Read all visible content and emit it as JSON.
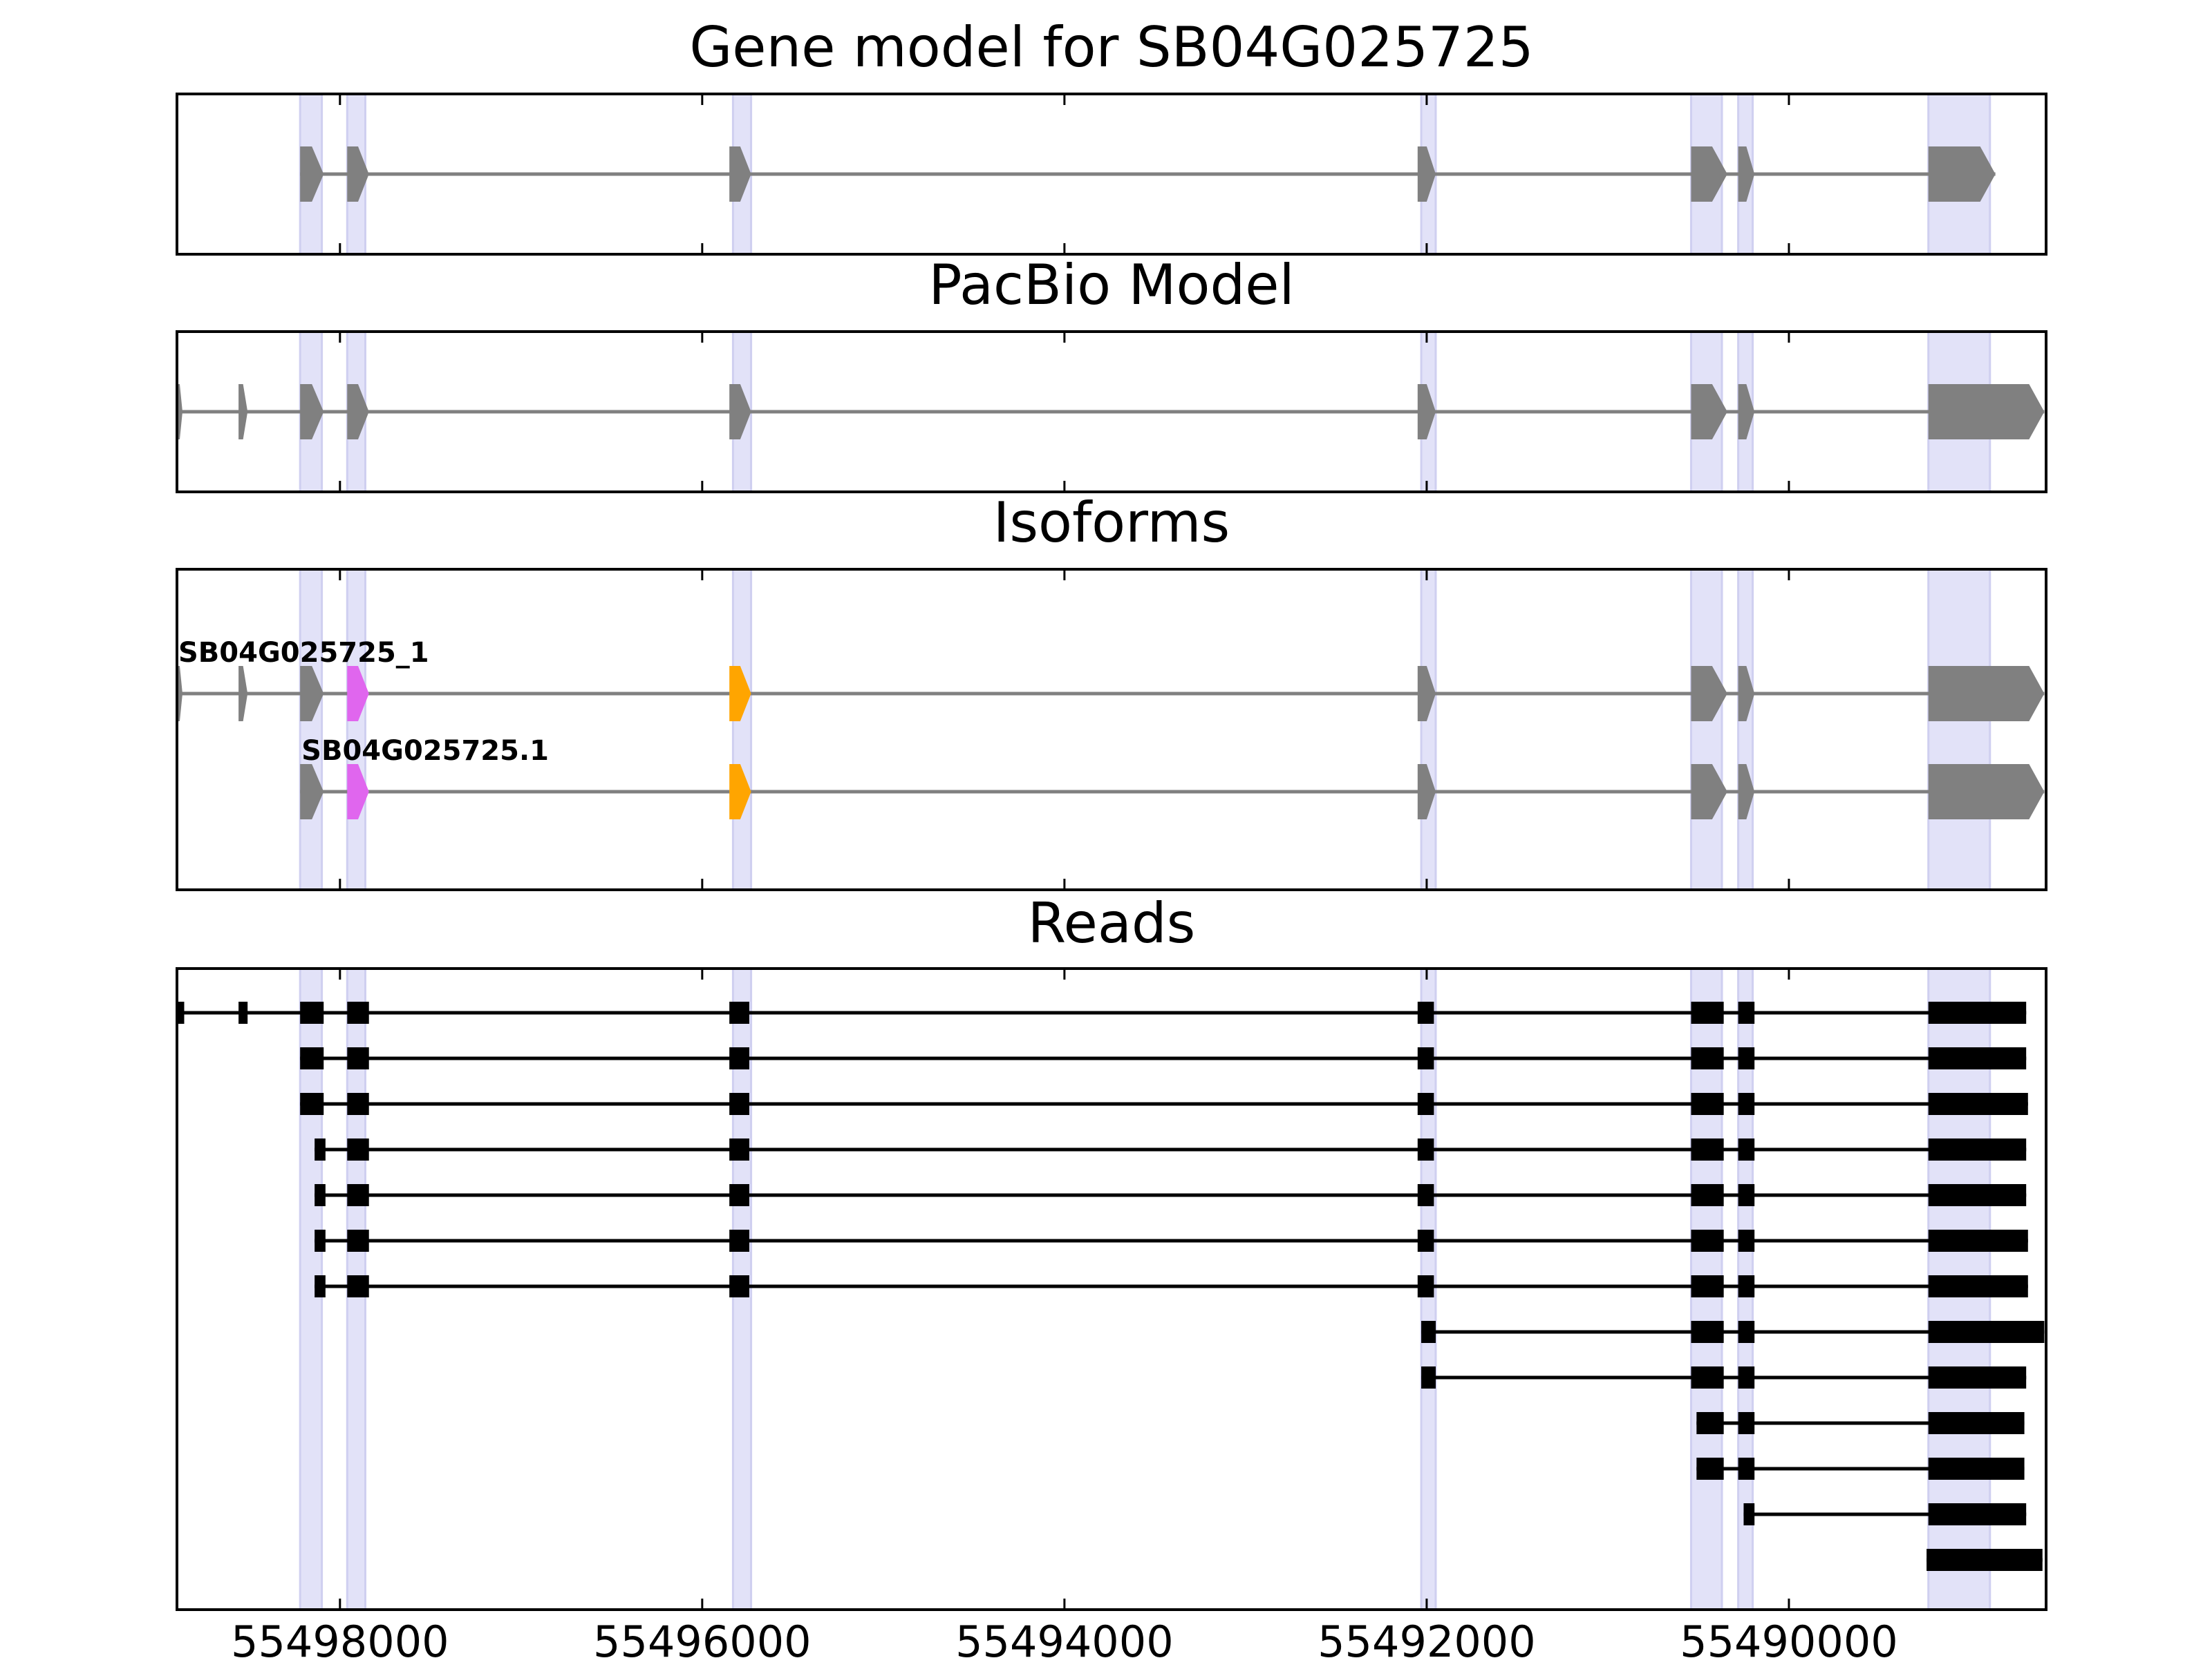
{
  "figure": {
    "panels": [
      {
        "key": "gene_model",
        "title": "Gene model for SB04G025725",
        "tracks": [
          {
            "label": "",
            "style": "gene",
            "exons": [
              [
                55498220,
                55498090
              ],
              [
                55497960,
                55497840
              ],
              [
                55495850,
                55495730
              ],
              [
                55492050,
                55491950
              ],
              [
                55490540,
                55490340
              ],
              [
                55490280,
                55490190
              ],
              [
                55489230,
                55488860
              ]
            ]
          }
        ]
      },
      {
        "key": "pacbio_model",
        "title": "PacBio Model",
        "tracks": [
          {
            "label": "",
            "style": "gene",
            "exons": [
              [
                55498900,
                55498870
              ],
              [
                55498560,
                55498510
              ],
              [
                55498220,
                55498090
              ],
              [
                55497960,
                55497840
              ],
              [
                55495850,
                55495730
              ],
              [
                55492050,
                55491950
              ],
              [
                55490540,
                55490340
              ],
              [
                55490280,
                55490190
              ],
              [
                55489230,
                55488590
              ]
            ]
          }
        ]
      },
      {
        "key": "isoforms",
        "title": "Isoforms",
        "tracks": [
          {
            "label": "SB04G025725_1",
            "style": "gene",
            "exons": [
              [
                55498900,
                55498870
              ],
              [
                55498560,
                55498510
              ],
              [
                55498220,
                55498090
              ],
              [
                55497960,
                55497840
              ],
              [
                55495850,
                55495730
              ],
              [
                55492050,
                55491950
              ],
              [
                55490540,
                55490340
              ],
              [
                55490280,
                55490190
              ],
              [
                55489230,
                55488590
              ]
            ],
            "exon_colors": [
              "#808080",
              "#808080",
              "#808080",
              "#e066ee",
              "#ffa500",
              "#808080",
              "#808080",
              "#808080",
              "#808080"
            ]
          },
          {
            "label": "SB04G025725.1",
            "style": "gene",
            "exons": [
              [
                55498220,
                55498090
              ],
              [
                55497960,
                55497840
              ],
              [
                55495850,
                55495730
              ],
              [
                55492050,
                55491950
              ],
              [
                55490540,
                55490340
              ],
              [
                55490280,
                55490190
              ],
              [
                55489230,
                55488590
              ]
            ],
            "exon_colors": [
              "#808080",
              "#e066ee",
              "#ffa500",
              "#808080",
              "#808080",
              "#808080",
              "#808080"
            ]
          }
        ]
      },
      {
        "key": "reads",
        "title": "Reads",
        "tracks": [
          {
            "label": "",
            "style": "read",
            "exons": [
              [
                55498900,
                55498860
              ],
              [
                55498560,
                55498510
              ],
              [
                55498220,
                55498090
              ],
              [
                55497960,
                55497840
              ],
              [
                55495850,
                55495740
              ],
              [
                55492050,
                55491960
              ],
              [
                55490540,
                55490360
              ],
              [
                55490280,
                55490190
              ],
              [
                55489230,
                55488690
              ]
            ]
          },
          {
            "label": "",
            "style": "read",
            "exons": [
              [
                55498220,
                55498090
              ],
              [
                55497960,
                55497840
              ],
              [
                55495850,
                55495740
              ],
              [
                55492050,
                55491960
              ],
              [
                55490540,
                55490360
              ],
              [
                55490280,
                55490190
              ],
              [
                55489230,
                55488690
              ]
            ]
          },
          {
            "label": "",
            "style": "read",
            "exons": [
              [
                55498220,
                55498090
              ],
              [
                55497960,
                55497840
              ],
              [
                55495850,
                55495740
              ],
              [
                55492050,
                55491960
              ],
              [
                55490540,
                55490360
              ],
              [
                55490280,
                55490190
              ],
              [
                55489230,
                55488680
              ]
            ]
          },
          {
            "label": "",
            "style": "read",
            "exons": [
              [
                55498140,
                55498080
              ],
              [
                55497960,
                55497840
              ],
              [
                55495850,
                55495740
              ],
              [
                55492050,
                55491960
              ],
              [
                55490540,
                55490360
              ],
              [
                55490280,
                55490190
              ],
              [
                55489230,
                55488690
              ]
            ]
          },
          {
            "label": "",
            "style": "read",
            "exons": [
              [
                55498140,
                55498080
              ],
              [
                55497960,
                55497840
              ],
              [
                55495850,
                55495740
              ],
              [
                55492050,
                55491960
              ],
              [
                55490540,
                55490360
              ],
              [
                55490280,
                55490190
              ],
              [
                55489230,
                55488690
              ]
            ]
          },
          {
            "label": "",
            "style": "read",
            "exons": [
              [
                55498140,
                55498080
              ],
              [
                55497960,
                55497840
              ],
              [
                55495850,
                55495740
              ],
              [
                55492050,
                55491960
              ],
              [
                55490540,
                55490360
              ],
              [
                55490280,
                55490190
              ],
              [
                55489230,
                55488680
              ]
            ]
          },
          {
            "label": "",
            "style": "read",
            "exons": [
              [
                55498140,
                55498080
              ],
              [
                55497960,
                55497840
              ],
              [
                55495850,
                55495740
              ],
              [
                55492050,
                55491960
              ],
              [
                55490540,
                55490360
              ],
              [
                55490280,
                55490190
              ],
              [
                55489230,
                55488680
              ]
            ]
          },
          {
            "label": "",
            "style": "read",
            "exons": [
              [
                55492030,
                55491950
              ],
              [
                55490540,
                55490360
              ],
              [
                55490280,
                55490190
              ],
              [
                55489230,
                55488590
              ]
            ]
          },
          {
            "label": "",
            "style": "read",
            "exons": [
              [
                55492030,
                55491950
              ],
              [
                55490540,
                55490360
              ],
              [
                55490280,
                55490190
              ],
              [
                55489230,
                55488690
              ]
            ]
          },
          {
            "label": "",
            "style": "read",
            "exons": [
              [
                55490510,
                55490360
              ],
              [
                55490280,
                55490190
              ],
              [
                55489230,
                55488700
              ]
            ]
          },
          {
            "label": "",
            "style": "read",
            "exons": [
              [
                55490510,
                55490360
              ],
              [
                55490280,
                55490190
              ],
              [
                55489230,
                55488700
              ]
            ]
          },
          {
            "label": "",
            "style": "read",
            "exons": [
              [
                55490250,
                55490190
              ],
              [
                55489230,
                55488690
              ]
            ]
          },
          {
            "label": "",
            "style": "read",
            "exons": [
              [
                55489240,
                55488600
              ]
            ]
          }
        ]
      }
    ],
    "highlight_regions": [
      [
        55498220,
        55498100
      ],
      [
        55497960,
        55497860
      ],
      [
        55495830,
        55495730
      ],
      [
        55492030,
        55491950
      ],
      [
        55490540,
        55490370
      ],
      [
        55490280,
        55490200
      ],
      [
        55489230,
        55488890
      ]
    ],
    "x_axis": {
      "range": [
        55498900,
        55488580
      ],
      "reversed": true,
      "ticks": [
        {
          "value": 55498000,
          "label": "55498000"
        },
        {
          "value": 55496000,
          "label": "55496000"
        },
        {
          "value": 55494000,
          "label": "55494000"
        },
        {
          "value": 55492000,
          "label": "55492000"
        },
        {
          "value": 55490000,
          "label": "55490000"
        }
      ]
    },
    "colors": {
      "gene_exon": "#808080",
      "intron_gene": "#808080",
      "read": "#000000",
      "highlight": "#e2e2f8",
      "isoform_purple": "#e066ee",
      "isoform_orange": "#ffa500",
      "frame": "#000000"
    }
  }
}
